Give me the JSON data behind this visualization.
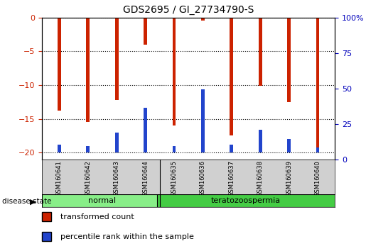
{
  "title": "GDS2695 / GI_27734790-S",
  "samples": [
    "GSM160641",
    "GSM160642",
    "GSM160643",
    "GSM160644",
    "GSM160635",
    "GSM160636",
    "GSM160637",
    "GSM160638",
    "GSM160639",
    "GSM160640"
  ],
  "red_values": [
    -13.8,
    -15.5,
    -12.2,
    -4.0,
    -16.0,
    -0.4,
    -17.5,
    -10.1,
    -12.5,
    -19.3
  ],
  "blue_values_pct": [
    6,
    5,
    15,
    33,
    5,
    47,
    6,
    17,
    10,
    4
  ],
  "groups": [
    {
      "label": "normal",
      "start": 0,
      "end": 4,
      "color": "#88ee88"
    },
    {
      "label": "teratozoospermia",
      "start": 4,
      "end": 10,
      "color": "#44cc44"
    }
  ],
  "ylim_left": [
    -21,
    0
  ],
  "ylim_right": [
    0,
    100
  ],
  "yticks_left": [
    0,
    -5,
    -10,
    -15,
    -20
  ],
  "yticks_right": [
    0,
    25,
    50,
    75,
    100
  ],
  "ytick_labels_right": [
    "0",
    "25",
    "50",
    "75",
    "100%"
  ],
  "bar_width": 0.12,
  "red_color": "#cc2200",
  "blue_color": "#2244cc",
  "grid_color": "black",
  "left_tick_color": "#cc2200",
  "right_tick_color": "#0000bb",
  "plot_bg": "#ffffff",
  "legend_red": "transformed count",
  "legend_blue": "percentile rank within the sample",
  "disease_state_label": "disease state",
  "normal_color": "#aaeebb",
  "terato_color": "#55dd55"
}
